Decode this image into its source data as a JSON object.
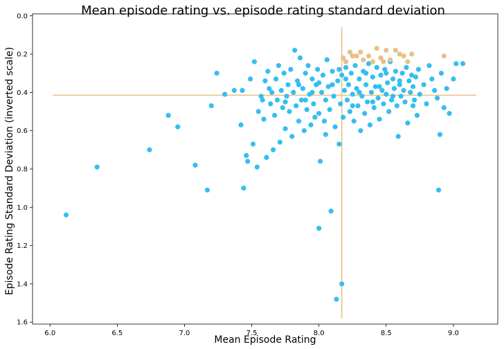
{
  "chart_data": {
    "type": "scatter",
    "title": "Mean episode rating vs. episode rating standard deviation",
    "xlabel": "Mean Episode Rating",
    "ylabel": "Episode Rating Standard Deviation (inverted scale)",
    "xlim": [
      5.87,
      9.33
    ],
    "ylim": [
      -0.01,
      1.61
    ],
    "y_inverted": true,
    "grid": false,
    "x_ticks": [
      "6.0",
      "6.5",
      "7.0",
      "7.5",
      "8.0",
      "8.5",
      "9.0"
    ],
    "y_ticks": [
      "0.0",
      "0.2",
      "0.4",
      "0.6",
      "0.8",
      "1.0",
      "1.2",
      "1.4",
      "1.6"
    ],
    "reference_lines": {
      "mean_x": 8.17,
      "mean_y": 0.415,
      "color": "#E8BF80"
    },
    "colors": {
      "main": "#35BEF0",
      "highlight": "#E8C08A",
      "reference": "#E8BF80"
    },
    "series": [
      {
        "color": "#35BEF0",
        "points": [
          [
            6.12,
            1.04
          ],
          [
            6.35,
            0.79
          ],
          [
            6.74,
            0.7
          ],
          [
            6.88,
            0.52
          ],
          [
            6.95,
            0.58
          ],
          [
            7.08,
            0.78
          ],
          [
            7.17,
            0.91
          ],
          [
            7.2,
            0.47
          ],
          [
            7.24,
            0.3
          ],
          [
            7.3,
            0.41
          ],
          [
            7.37,
            0.39
          ],
          [
            7.42,
            0.57
          ],
          [
            7.43,
            0.39
          ],
          [
            7.44,
            0.9
          ],
          [
            7.46,
            0.73
          ],
          [
            7.47,
            0.76
          ],
          [
            7.49,
            0.33
          ],
          [
            7.51,
            0.67
          ],
          [
            7.52,
            0.24
          ],
          [
            7.54,
            0.79
          ],
          [
            7.55,
            0.5
          ],
          [
            7.57,
            0.42
          ],
          [
            7.58,
            0.44
          ],
          [
            7.59,
            0.54
          ],
          [
            7.6,
            0.34
          ],
          [
            7.61,
            0.74
          ],
          [
            7.62,
            0.29
          ],
          [
            7.63,
            0.38
          ],
          [
            7.64,
            0.46
          ],
          [
            7.65,
            0.4
          ],
          [
            7.66,
            0.7
          ],
          [
            7.67,
            0.52
          ],
          [
            7.68,
            0.33
          ],
          [
            7.69,
            0.44
          ],
          [
            7.7,
            0.26
          ],
          [
            7.71,
            0.66
          ],
          [
            7.72,
            0.39
          ],
          [
            7.73,
            0.48
          ],
          [
            7.74,
            0.3
          ],
          [
            7.75,
            0.59
          ],
          [
            7.76,
            0.42
          ],
          [
            7.77,
            0.36
          ],
          [
            7.78,
            0.5
          ],
          [
            7.79,
            0.28
          ],
          [
            7.8,
            0.63
          ],
          [
            7.81,
            0.4
          ],
          [
            7.82,
            0.18
          ],
          [
            7.83,
            0.47
          ],
          [
            7.84,
            0.34
          ],
          [
            7.85,
            0.55
          ],
          [
            7.86,
            0.22
          ],
          [
            7.87,
            0.44
          ],
          [
            7.88,
            0.38
          ],
          [
            7.89,
            0.6
          ],
          [
            7.9,
            0.3
          ],
          [
            7.91,
            0.49
          ],
          [
            7.92,
            0.26
          ],
          [
            7.93,
            0.41
          ],
          [
            7.94,
            0.57
          ],
          [
            7.95,
            0.33
          ],
          [
            7.96,
            0.46
          ],
          [
            7.97,
            0.53
          ],
          [
            7.98,
            0.36
          ],
          [
            7.99,
            0.28
          ],
          [
            8.0,
            0.51
          ],
          [
            8.0,
            1.11
          ],
          [
            8.01,
            0.76
          ],
          [
            8.02,
            0.4
          ],
          [
            8.03,
            0.31
          ],
          [
            8.04,
            0.55
          ],
          [
            8.05,
            0.44
          ],
          [
            8.06,
            0.23
          ],
          [
            8.07,
            0.37
          ],
          [
            8.08,
            0.49
          ],
          [
            8.09,
            1.02
          ],
          [
            8.1,
            0.29
          ],
          [
            8.11,
            0.42
          ],
          [
            8.12,
            0.58
          ],
          [
            8.13,
            1.48
          ],
          [
            8.14,
            0.34
          ],
          [
            8.15,
            0.67
          ],
          [
            8.16,
            0.46
          ],
          [
            8.17,
            0.31
          ],
          [
            8.18,
            0.53
          ],
          [
            8.19,
            0.39
          ],
          [
            8.2,
            0.27
          ],
          [
            8.21,
            0.44
          ],
          [
            8.22,
            0.36
          ],
          [
            8.23,
            0.5
          ],
          [
            8.24,
            0.3
          ],
          [
            8.25,
            0.41
          ],
          [
            8.26,
            0.55
          ],
          [
            8.27,
            0.26
          ],
          [
            8.28,
            0.38
          ],
          [
            8.29,
            0.47
          ],
          [
            8.3,
            0.33
          ],
          [
            8.31,
            0.6
          ],
          [
            8.32,
            0.42
          ],
          [
            8.33,
            0.29
          ],
          [
            8.34,
            0.51
          ],
          [
            8.35,
            0.36
          ],
          [
            8.36,
            0.45
          ],
          [
            8.37,
            0.25
          ],
          [
            8.38,
            0.57
          ],
          [
            8.39,
            0.4
          ],
          [
            8.4,
            0.32
          ],
          [
            8.41,
            0.48
          ],
          [
            8.42,
            0.37
          ],
          [
            8.43,
            0.27
          ],
          [
            8.44,
            0.43
          ],
          [
            8.45,
            0.54
          ],
          [
            8.46,
            0.31
          ],
          [
            8.47,
            0.39
          ],
          [
            8.48,
            0.46
          ],
          [
            8.49,
            0.28
          ],
          [
            8.5,
            0.41
          ],
          [
            8.51,
            0.35
          ],
          [
            8.52,
            0.5
          ],
          [
            8.53,
            0.24
          ],
          [
            8.54,
            0.44
          ],
          [
            8.55,
            0.33
          ],
          [
            8.56,
            0.38
          ],
          [
            8.57,
            0.29
          ],
          [
            8.58,
            0.47
          ],
          [
            8.59,
            0.63
          ],
          [
            8.6,
            0.36
          ],
          [
            8.61,
            0.42
          ],
          [
            8.62,
            0.3
          ],
          [
            8.63,
            0.39
          ],
          [
            8.64,
            0.45
          ],
          [
            8.65,
            0.27
          ],
          [
            8.66,
            0.56
          ],
          [
            8.67,
            0.34
          ],
          [
            8.68,
            0.4
          ],
          [
            8.69,
            0.31
          ],
          [
            8.7,
            0.37
          ],
          [
            8.71,
            0.44
          ],
          [
            8.72,
            0.32
          ],
          [
            8.73,
            0.52
          ],
          [
            8.74,
            0.28
          ],
          [
            8.75,
            0.41
          ],
          [
            8.78,
            0.36
          ],
          [
            8.8,
            0.46
          ],
          [
            8.82,
            0.26
          ],
          [
            8.84,
            0.33
          ],
          [
            8.86,
            0.39
          ],
          [
            8.88,
            0.43
          ],
          [
            8.89,
            0.91
          ],
          [
            8.9,
            0.62
          ],
          [
            8.91,
            0.3
          ],
          [
            8.93,
            0.48
          ],
          [
            8.95,
            0.38
          ],
          [
            8.97,
            0.51
          ],
          [
            9.0,
            0.33
          ],
          [
            9.02,
            0.25
          ],
          [
            9.07,
            0.25
          ],
          [
            7.95,
            0.4
          ],
          [
            8.05,
            0.62
          ],
          [
            8.15,
            0.28
          ],
          [
            8.25,
            0.47
          ],
          [
            8.35,
            0.3
          ],
          [
            8.45,
            0.37
          ],
          [
            8.55,
            0.42
          ],
          [
            7.85,
            0.36
          ],
          [
            7.75,
            0.45
          ],
          [
            8.1,
            0.36
          ],
          [
            8.2,
            0.33
          ],
          [
            8.3,
            0.4
          ],
          [
            8.4,
            0.45
          ],
          [
            8.5,
            0.3
          ],
          [
            8.6,
            0.34
          ],
          [
            8.7,
            0.47
          ],
          [
            7.9,
            0.44
          ],
          [
            8.0,
            0.35
          ],
          [
            8.17,
            1.4
          ]
        ]
      },
      {
        "color": "#E8C08A",
        "points": [
          [
            8.18,
            0.22
          ],
          [
            8.2,
            0.24
          ],
          [
            8.23,
            0.19
          ],
          [
            8.28,
            0.21
          ],
          [
            8.31,
            0.19
          ],
          [
            8.33,
            0.23
          ],
          [
            8.37,
            0.21
          ],
          [
            8.43,
            0.17
          ],
          [
            8.46,
            0.22
          ],
          [
            8.48,
            0.24
          ],
          [
            8.5,
            0.18
          ],
          [
            8.53,
            0.23
          ],
          [
            8.57,
            0.18
          ],
          [
            8.6,
            0.2
          ],
          [
            8.63,
            0.21
          ],
          [
            8.66,
            0.24
          ],
          [
            8.69,
            0.2
          ],
          [
            8.93,
            0.21
          ],
          [
            8.4,
            0.24
          ],
          [
            8.25,
            0.21
          ]
        ]
      }
    ]
  }
}
